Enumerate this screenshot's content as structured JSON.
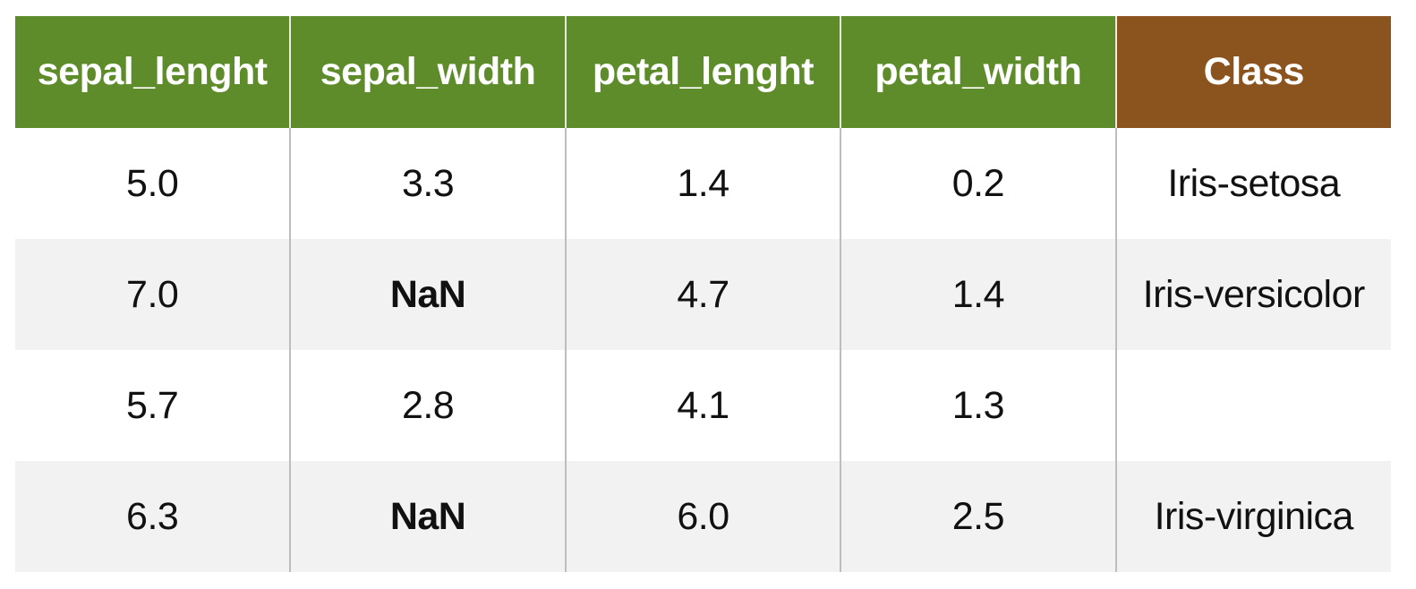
{
  "chart_data": {
    "type": "table",
    "columns": [
      {
        "label": "sepal_lenght",
        "color": "#5e8c2b"
      },
      {
        "label": "sepal_width",
        "color": "#5e8c2b"
      },
      {
        "label": "petal_lenght",
        "color": "#5e8c2b"
      },
      {
        "label": "petal_width",
        "color": "#5e8c2b"
      },
      {
        "label": "Class",
        "color": "#8b531e"
      }
    ],
    "rows": [
      [
        "5.0",
        "3.3",
        "1.4",
        "0.2",
        "Iris-setosa"
      ],
      [
        "7.0",
        "NaN",
        "4.7",
        "1.4",
        "Iris-versicolor"
      ],
      [
        "5.7",
        "2.8",
        "4.1",
        "1.3",
        ""
      ],
      [
        "6.3",
        "NaN",
        "6.0",
        "2.5",
        "Iris-virginica"
      ]
    ],
    "missing_value_label": "NaN",
    "colors": {
      "feature_header": "#5e8c2b",
      "class_header": "#8b531e",
      "stripe": "#f2f2f2"
    }
  }
}
